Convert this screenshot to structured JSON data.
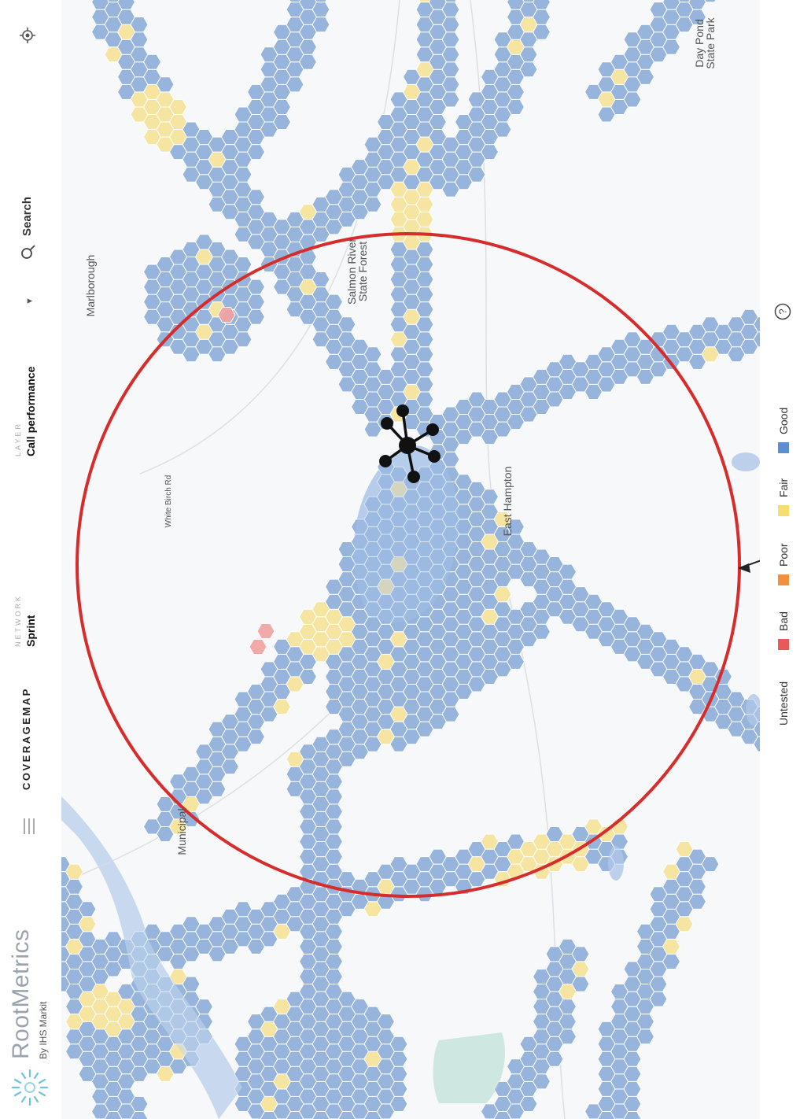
{
  "app": {
    "logo_text": "RootMetrics",
    "logo_sub": "By IHS Markit",
    "brand": "COVERAGEMAP"
  },
  "header": {
    "network_label": "NETWORK",
    "network_value": "Sprint",
    "layer_label": "LAYER",
    "layer_value": "Call performance",
    "search_label": "Search",
    "icons": [
      "menu-icon",
      "chevron-down-icon",
      "search-icon",
      "locate-icon"
    ]
  },
  "map": {
    "labels": [
      "Salmon River State Forest",
      "Day Pond State Park",
      "Marlborough",
      "East Hampton",
      "Municipal",
      "White Birch Rd"
    ]
  },
  "legend": {
    "items": [
      {
        "label": "Untested",
        "color": ""
      },
      {
        "label": "Bad",
        "color": "#e85a5a"
      },
      {
        "label": "Poor",
        "color": "#f0923c"
      },
      {
        "label": "Fair",
        "color": "#f7dc6f"
      },
      {
        "label": "Good",
        "color": "#5b8fcf"
      }
    ],
    "help_icon": "help-icon"
  },
  "colors": {
    "good": "#8fb0da",
    "fair": "#f6e39a",
    "bad": "#f2a3a3",
    "water": "#a9c4e8",
    "circle": "#d62c2c"
  }
}
